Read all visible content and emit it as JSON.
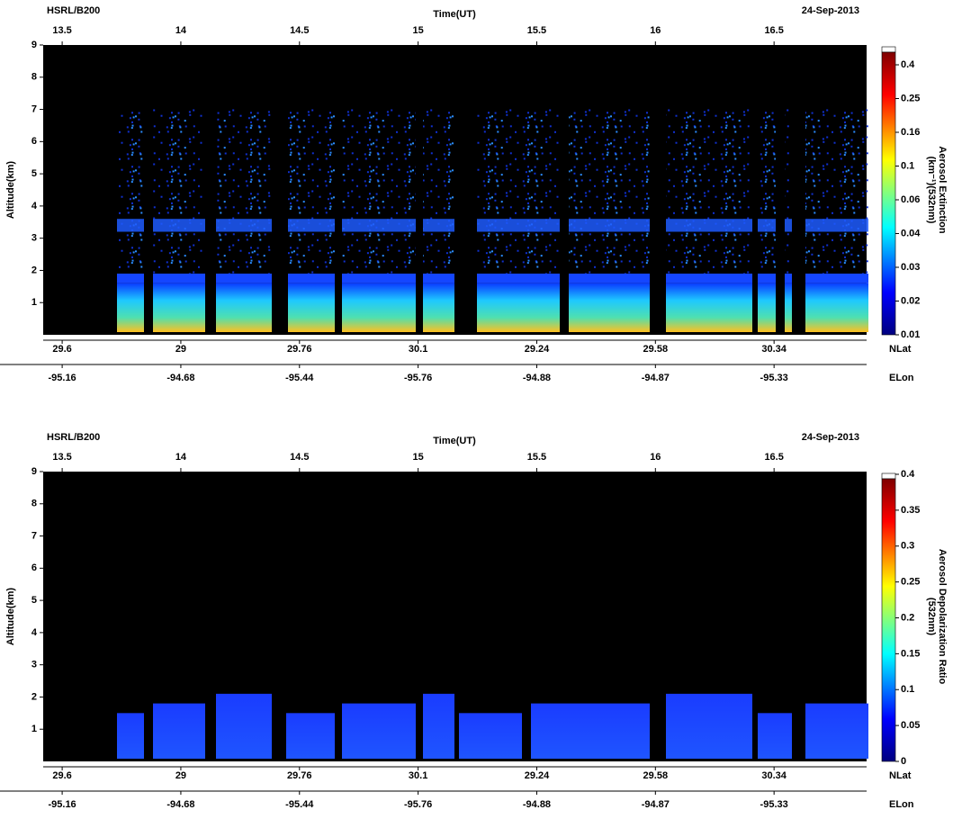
{
  "chart_data": [
    {
      "type": "curtain",
      "title": "HSRL/B200",
      "date": "24-Sep-2013",
      "xlabel": "Time(UT)",
      "xlim": [
        13.42,
        16.89
      ],
      "xticks": [
        13.5,
        14,
        14.5,
        15,
        15.5,
        16,
        16.5
      ],
      "ylabel": "Altitude(km)",
      "ylim": [
        0,
        9
      ],
      "yticks": [
        1,
        2,
        3,
        4,
        5,
        6,
        7,
        8,
        9
      ],
      "lat_label": "NLat",
      "lat_ticks": [
        29.6,
        29,
        29.76,
        30.1,
        29.24,
        29.58,
        30.34
      ],
      "lon_label": "ELon",
      "lon_ticks": [
        -95.16,
        -94.68,
        -95.44,
        -95.76,
        -94.88,
        -94.87,
        -95.33
      ],
      "colorbar_label": [
        "Aerosol Extinction",
        "(km⁻¹)(532nm)"
      ],
      "colorbar_ticks": [
        0.01,
        0.02,
        0.03,
        0.04,
        0.06,
        0.1,
        0.16,
        0.25,
        0.4
      ]
    },
    {
      "type": "curtain",
      "title": "HSRL/B200",
      "date": "24-Sep-2013",
      "xlabel": "Time(UT)",
      "xlim": [
        13.42,
        16.89
      ],
      "xticks": [
        13.5,
        14,
        14.5,
        15,
        15.5,
        16,
        16.5
      ],
      "ylabel": "Altitude(km)",
      "ylim": [
        0,
        9
      ],
      "yticks": [
        1,
        2,
        3,
        4,
        5,
        6,
        7,
        8,
        9
      ],
      "lat_label": "NLat",
      "lat_ticks": [
        29.6,
        29,
        29.76,
        30.1,
        29.24,
        29.58,
        30.34
      ],
      "lon_label": "ELon",
      "lon_ticks": [
        -95.16,
        -94.68,
        -95.44,
        -95.76,
        -94.88,
        -94.87,
        -95.33
      ],
      "colorbar_label": [
        "Aerosol Depolarization Ratio",
        "(532nm)"
      ],
      "colorbar_ticks": [
        0,
        0.05,
        0.1,
        0.15,
        0.2,
        0.25,
        0.3,
        0.35,
        0.4
      ]
    }
  ]
}
